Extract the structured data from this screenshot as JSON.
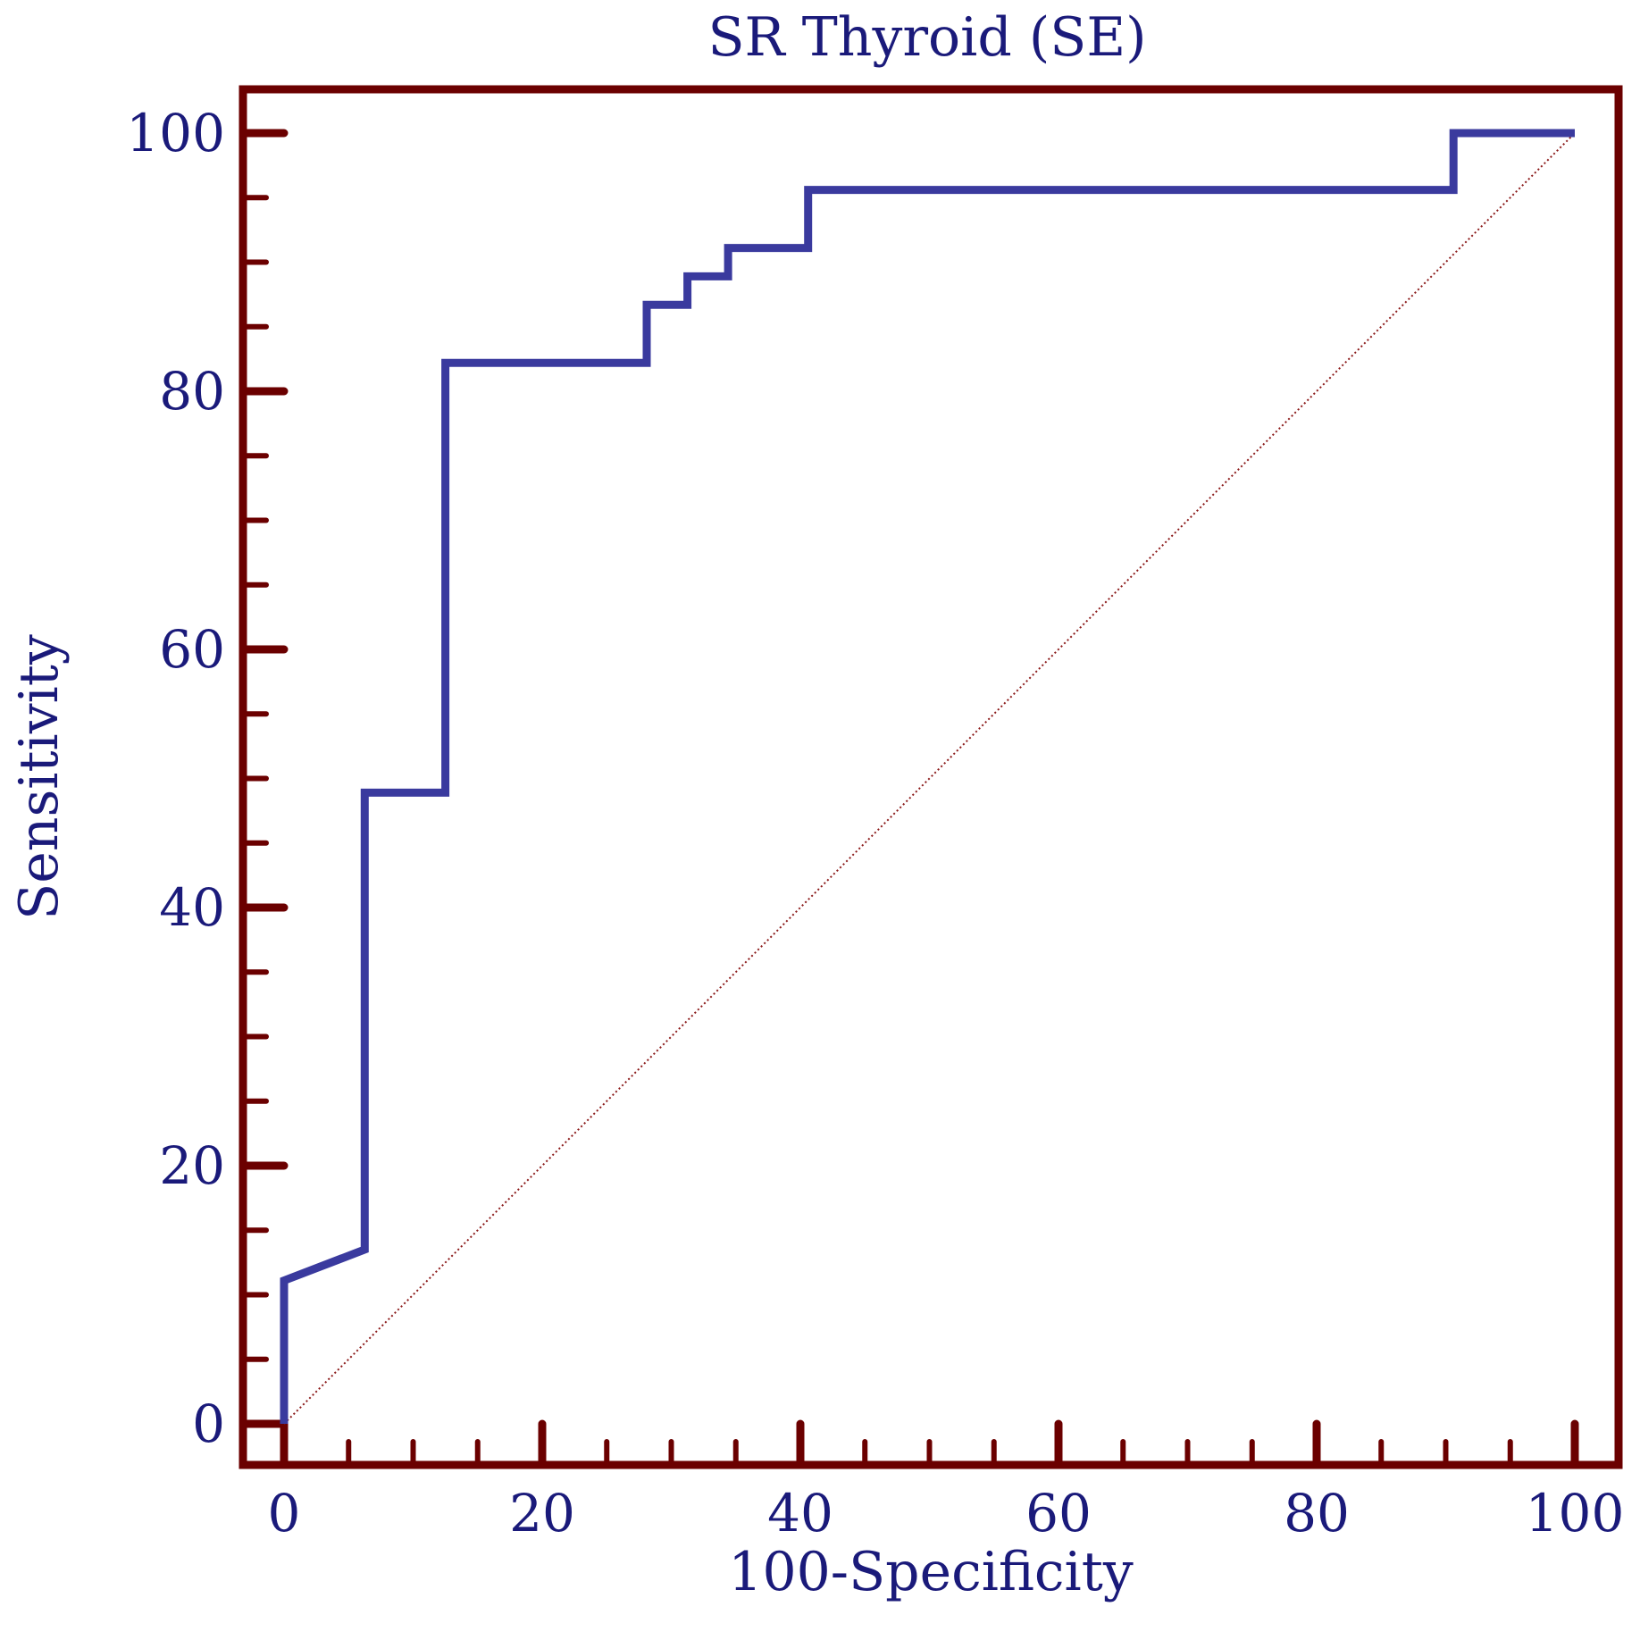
{
  "chart_data": {
    "type": "line",
    "title": "SR Thyroid (SE)",
    "xlabel": "100-Specificity",
    "ylabel": "Sensitivity",
    "xlim": [
      0,
      100
    ],
    "ylim": [
      0,
      100
    ],
    "x_ticks": [
      "0",
      "20",
      "40",
      "60",
      "80",
      "100"
    ],
    "y_ticks": [
      "0",
      "20",
      "40",
      "60",
      "80",
      "100"
    ],
    "x_tick_values": [
      0,
      20,
      40,
      60,
      80,
      100
    ],
    "y_tick_values": [
      0,
      20,
      40,
      60,
      80,
      100
    ],
    "x_minor_step": 5,
    "y_minor_step": 5,
    "grid": false,
    "series": [
      {
        "role": "roc-curve",
        "x": [
          0,
          0,
          6.25,
          6.25,
          12.5,
          12.5,
          28.1,
          28.1,
          31.25,
          31.25,
          34.4,
          34.4,
          40.6,
          40.6,
          90.6,
          90.6,
          100
        ],
        "y": [
          0,
          11.1,
          13.5,
          48.9,
          48.9,
          82.2,
          82.2,
          86.7,
          86.7,
          88.9,
          88.9,
          91.1,
          91.1,
          95.6,
          95.6,
          100,
          100
        ]
      },
      {
        "role": "reference-diagonal",
        "x": [
          0,
          100
        ],
        "y": [
          0,
          100
        ]
      }
    ],
    "colors": {
      "curve": "#3a3a9e",
      "frame": "#6b0000",
      "diagonal": "#8b1a1a",
      "text": "#1a1a7a"
    }
  }
}
